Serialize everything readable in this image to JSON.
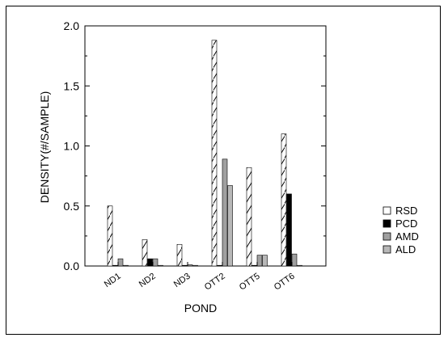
{
  "chart_data": {
    "type": "bar",
    "title": "",
    "xlabel": "POND",
    "ylabel": "DENSITY(#/SAMPLE)",
    "ylim": [
      0,
      2.0
    ],
    "yticks": [
      {
        "value": 0,
        "label": "0.0"
      },
      {
        "value": 0.5,
        "label": "0.5"
      },
      {
        "value": 1.0,
        "label": "1.0"
      },
      {
        "value": 1.5,
        "label": "1.5"
      },
      {
        "value": 2.0,
        "label": "2.0"
      }
    ],
    "categories": [
      "ND1",
      "ND2",
      "ND3",
      "OTT2",
      "OTT5",
      "OTT6"
    ],
    "series": [
      {
        "name": "RSD",
        "values": [
          0.5,
          0.22,
          0.18,
          1.88,
          0.82,
          1.1
        ]
      },
      {
        "name": "PCD",
        "values": [
          0.0,
          0.06,
          0.0,
          0.0,
          0.0,
          0.6
        ]
      },
      {
        "name": "AMD",
        "values": [
          0.06,
          0.06,
          0.01,
          0.89,
          0.09,
          0.1
        ]
      },
      {
        "name": "ALD",
        "values": [
          0.0,
          0.0,
          0.0,
          0.67,
          0.09,
          0.0
        ]
      }
    ],
    "legend_position": "right",
    "grid": false
  },
  "colors": {
    "RSD": "#ffffff",
    "PCD": "#000000",
    "AMD": "#a0a0a0",
    "ALD": "#b8b8b8"
  }
}
